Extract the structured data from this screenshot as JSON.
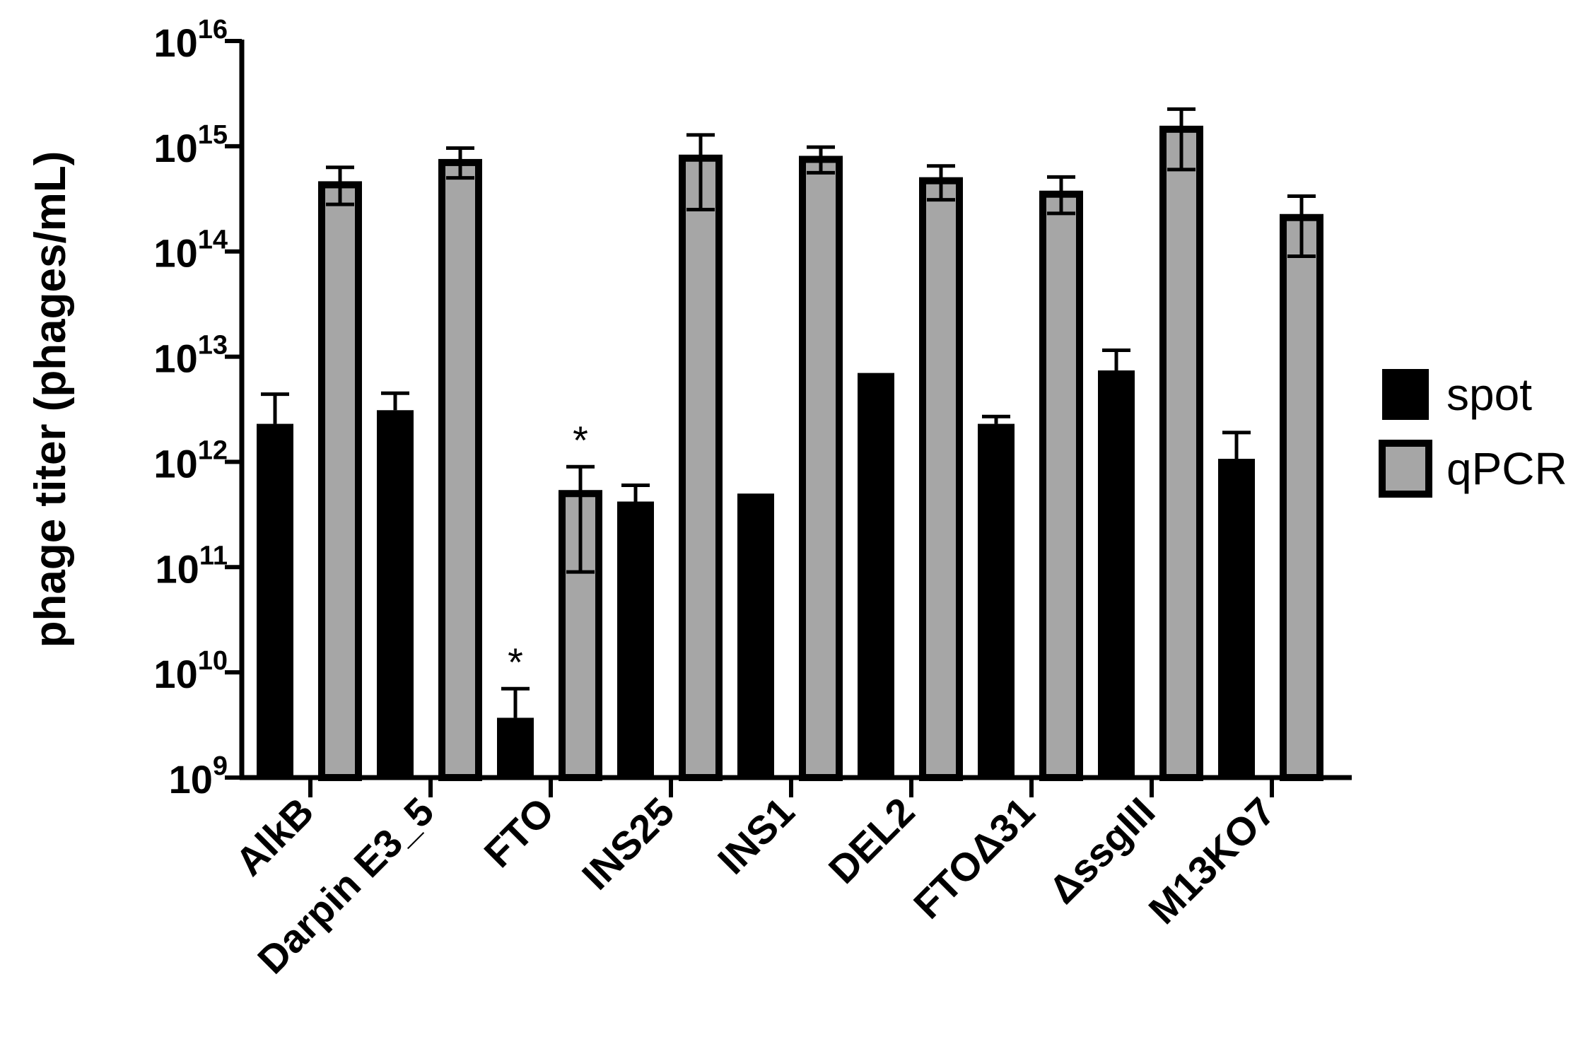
{
  "chart_data": {
    "type": "bar",
    "ylabel": "phage titer (phages/mL)",
    "yscale": "log",
    "ylim": [
      1000000000.0,
      1e+16
    ],
    "yticks": [
      {
        "base": "10",
        "exp": "9"
      },
      {
        "base": "10",
        "exp": "10"
      },
      {
        "base": "10",
        "exp": "11"
      },
      {
        "base": "10",
        "exp": "12"
      },
      {
        "base": "10",
        "exp": "13"
      },
      {
        "base": "10",
        "exp": "14"
      },
      {
        "base": "10",
        "exp": "15"
      },
      {
        "base": "10",
        "exp": "16"
      }
    ],
    "categories": [
      "AlkB",
      "Darpin E3_5",
      "FTO",
      "INS25",
      "INS1",
      "DEL2",
      "FTOΔ31",
      "ΔssgIII",
      "M13KO7"
    ],
    "series": [
      {
        "name": "spot",
        "color": "#000000",
        "values": [
          2300000000000.0,
          3100000000000.0,
          3700000000.0,
          420000000000.0,
          500000000000.0,
          7000000000000.0,
          2300000000000.0,
          7400000000000.0,
          1070000000000.0
        ],
        "err_hi": [
          4400000000000.0,
          4500000000000.0,
          7000000000.0,
          600000000000.0,
          null,
          null,
          2700000000000.0,
          11500000000000.0,
          1900000000000.0
        ],
        "annotations": [
          "",
          "",
          "*",
          "",
          "",
          "",
          "",
          "",
          ""
        ]
      },
      {
        "name": "qPCR",
        "color": "#a6a6a6",
        "values": [
          430000000000000.0,
          700000000000000.0,
          500000000000.0,
          770000000000000.0,
          750000000000000.0,
          470000000000000.0,
          350000000000000.0,
          1450000000000000.0,
          210000000000000.0
        ],
        "err_hi": [
          630000000000000.0,
          960000000000000.0,
          900000000000.0,
          1280000000000000.0,
          980000000000000.0,
          650000000000000.0,
          510000000000000.0,
          2250000000000000.0,
          335000000000000.0
        ],
        "err_lo": [
          280000000000000.0,
          500000000000000.0,
          90000000000.0,
          250000000000000.0,
          560000000000000.0,
          310000000000000.0,
          230000000000000.0,
          600000000000000.0,
          90000000000000.0
        ],
        "annotations": [
          "",
          "",
          "*",
          "",
          "",
          "",
          "",
          "",
          ""
        ]
      }
    ],
    "legend": {
      "position": "right",
      "entries": [
        "spot",
        "qPCR"
      ]
    },
    "grid": false
  }
}
